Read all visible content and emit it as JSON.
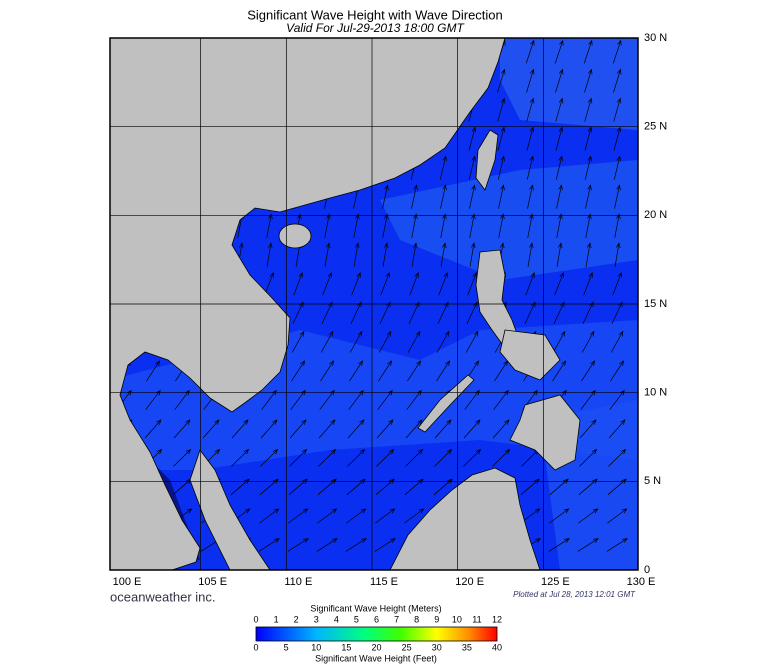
{
  "header": {
    "title": "Significant Wave Height with Wave Direction",
    "subtitle": "Valid For Jul-29-2013 18:00 GMT"
  },
  "map": {
    "lat_labels": [
      "30 N",
      "25 N",
      "20 N",
      "15 N",
      "10 N",
      "5 N",
      "0"
    ],
    "lon_labels": [
      "100 E",
      "105 E",
      "110 E",
      "115 E",
      "120 E",
      "125 E",
      "130 E"
    ]
  },
  "footer": {
    "brand": "oceanweather inc.",
    "plotted": "Plotted at Jul 28, 2013 12:01 GMT"
  },
  "legend": {
    "meters_title": "Significant Wave Height (Meters)",
    "meters_ticks": [
      0,
      1,
      2,
      3,
      4,
      5,
      6,
      7,
      8,
      9,
      10,
      11,
      12
    ],
    "feet_title": "Significant Wave Height (Feet)",
    "feet_ticks": [
      0,
      5,
      10,
      15,
      20,
      25,
      30,
      35,
      40
    ]
  }
}
